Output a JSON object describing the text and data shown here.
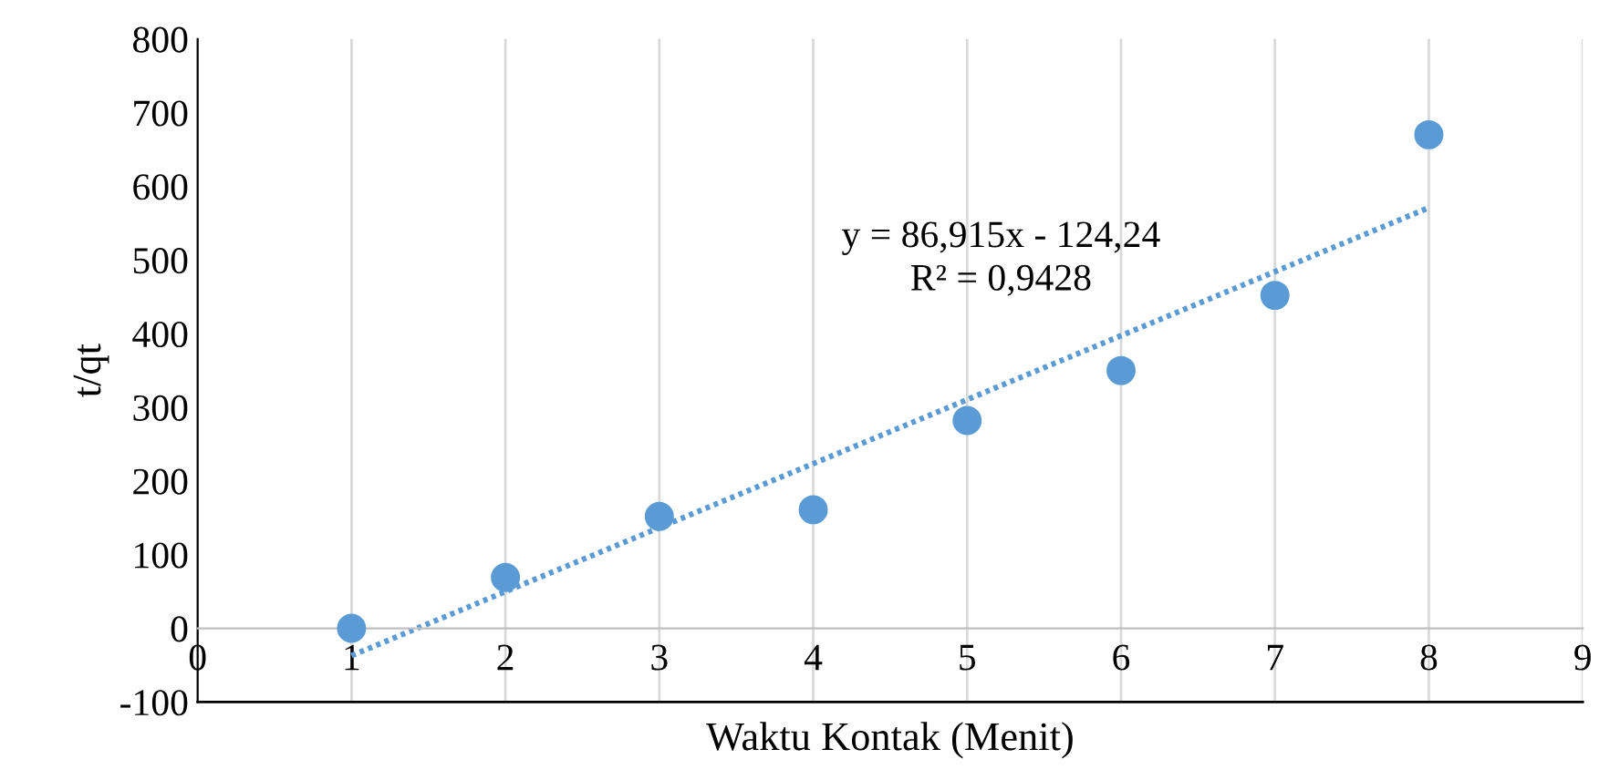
{
  "chart_data": {
    "type": "scatter",
    "xlabel": "Waktu Kontak (Menit)",
    "ylabel": "t/qt",
    "x": [
      1,
      2,
      3,
      4,
      5,
      6,
      7,
      8
    ],
    "series": [
      {
        "color": "#5b9bd5",
        "marker": "circle",
        "values": [
          0,
          69,
          152,
          161,
          282,
          350,
          452,
          670
        ]
      },
      {
        "type": "line",
        "color": "#5b9bd5",
        "marker": "none",
        "line_style": "dotted",
        "x": [
          1,
          8
        ],
        "values": [
          -37,
          571
        ]
      }
    ],
    "annotations": [
      "y = 86,915x - 124,24",
      "R² = 0,9428"
    ],
    "xlim": [
      0,
      9
    ],
    "xticks": [
      0,
      1,
      2,
      3,
      4,
      5,
      6,
      7,
      8,
      9
    ],
    "ylim": [
      -100,
      800
    ],
    "yticks": [
      -100,
      0,
      100,
      200,
      300,
      400,
      500,
      600,
      700,
      800
    ],
    "grid": "x",
    "legend": false
  }
}
